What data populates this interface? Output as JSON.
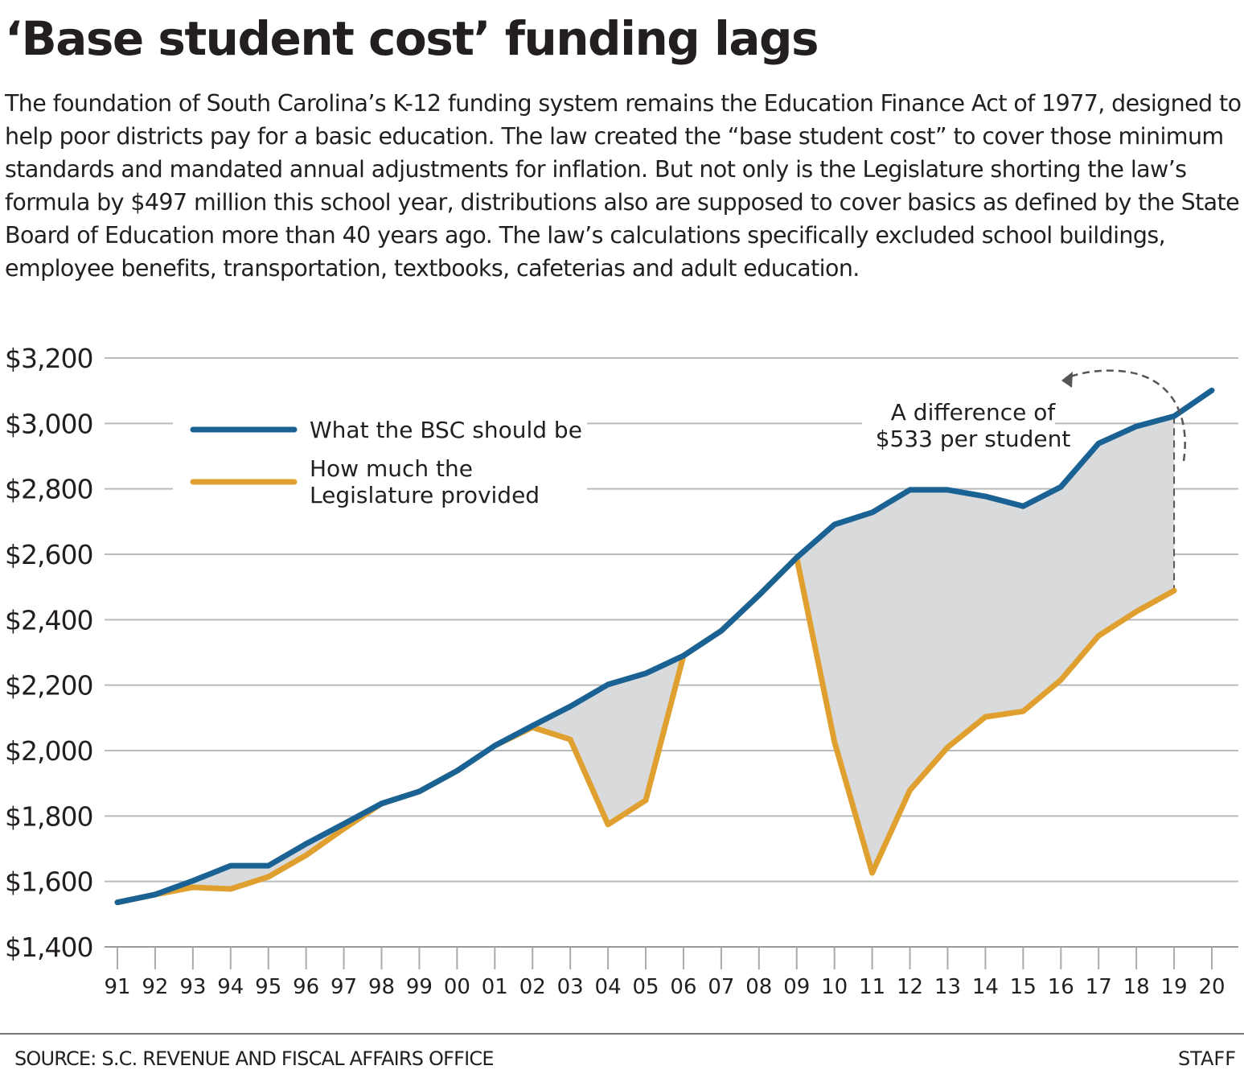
{
  "title": "‘Base student cost’ funding lags",
  "intro": "The foundation of South Carolina’s K-12 funding system remains the Education Finance Act of 1977, designed to help poor districts pay for a basic education. The law created the “base student cost” to cover those minimum standards and mandated annual adjustments for inflation. But not only is the Legislature shorting the law’s formula by $497 million this school year, distributions also are supposed to cover basics as defined by the State Board of Education more than 40 years ago. The law’s calculations specifically excluded school buildings, employee benefits, transportation, textbooks, cafeterias and adult education.",
  "footer": {
    "source": "SOURCE: S.C. REVENUE AND FISCAL AFFAIRS OFFICE",
    "credit": "STAFF"
  },
  "colors": {
    "bsc": "#1b6294",
    "provided": "#e0a030",
    "gap_fill": "#d9dadc",
    "grid": "#b8bbbe"
  },
  "chart_data": {
    "type": "line",
    "ylim": [
      1400,
      3200
    ],
    "yticks": [
      "$1,400",
      "$1,600",
      "$1,800",
      "$2,000",
      "$2,200",
      "$2,400",
      "$2,600",
      "$2,800",
      "$3,000",
      "$3,200"
    ],
    "ytick_values": [
      1400,
      1600,
      1800,
      2000,
      2200,
      2400,
      2600,
      2800,
      3000,
      3200
    ],
    "categories": [
      "91",
      "92",
      "93",
      "94",
      "95",
      "96",
      "97",
      "98",
      "99",
      "00",
      "01",
      "02",
      "03",
      "04",
      "05",
      "06",
      "07",
      "08",
      "09",
      "10",
      "11",
      "12",
      "13",
      "14",
      "15",
      "16",
      "17",
      "18",
      "19",
      "20"
    ],
    "grid": true,
    "legend_position": "top-left",
    "series": [
      {
        "name": "What the BSC should be",
        "color": "#1b6294",
        "values": [
          1536,
          1560,
          1602,
          1648,
          1648,
          1715,
          1776,
          1838,
          1875,
          1938,
          2015,
          2076,
          2135,
          2202,
          2236,
          2290,
          2366,
          2475,
          2590,
          2691,
          2728,
          2797,
          2797,
          2777,
          2747,
          2806,
          2939,
          2991,
          3022,
          3101
        ]
      },
      {
        "name": "How much the Legislature provided",
        "legend_lines": [
          "How much the",
          "Legislature provided"
        ],
        "color": "#e0a030",
        "values": [
          1536,
          1560,
          1582,
          1577,
          1614,
          1680,
          1761,
          1838,
          1875,
          1938,
          2015,
          2071,
          2034,
          1774,
          1848,
          2290,
          2366,
          2475,
          2590,
          2027,
          1626,
          1879,
          2010,
          2103,
          2120,
          2216,
          2351,
          2425,
          2489,
          null
        ]
      }
    ],
    "annotation": {
      "lines": [
        "A difference of",
        "$533 per student"
      ],
      "year": "19"
    }
  }
}
